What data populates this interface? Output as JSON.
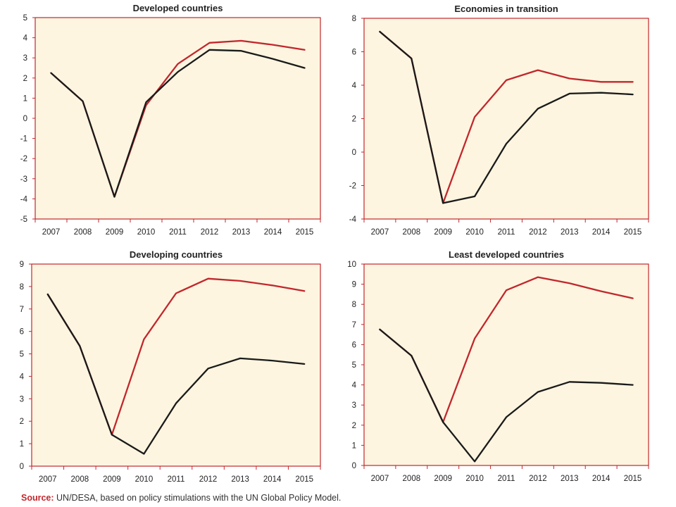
{
  "colors": {
    "plot_background": "#fdf5e0",
    "frame": "#c2272d",
    "series_a": "#c2272d",
    "series_b": "#1a1a1a",
    "source_label": "#c2272d"
  },
  "source": {
    "label": "Source:",
    "text": "UN/DESA, based on policy stimulations with the UN Global Policy Model."
  },
  "chart_data": [
    {
      "type": "line",
      "title": "Developed countries",
      "xlabel": "",
      "ylabel": "",
      "x": [
        "2007",
        "2008",
        "2009",
        "2010",
        "2011",
        "2012",
        "2013",
        "2014",
        "2015"
      ],
      "ylim": [
        -5,
        5
      ],
      "yticks": [
        "5",
        "4",
        "3",
        "2",
        "1",
        "0",
        "-1",
        "-2",
        "-3",
        "-4",
        "-5"
      ],
      "grid": false,
      "series": [
        {
          "values": [
            2.25,
            0.85,
            -3.9,
            0.65,
            2.7,
            3.75,
            3.85,
            3.65,
            3.4
          ]
        },
        {
          "values": [
            2.25,
            0.85,
            -3.9,
            0.8,
            2.3,
            3.4,
            3.35,
            2.95,
            2.5
          ]
        }
      ]
    },
    {
      "type": "line",
      "title": "Economies in transition",
      "xlabel": "",
      "ylabel": "",
      "x": [
        "2007",
        "2008",
        "2009",
        "2010",
        "2011",
        "2012",
        "2013",
        "2014",
        "2015"
      ],
      "ylim": [
        -4,
        8
      ],
      "yticks": [
        "8",
        "6",
        "4",
        "2",
        "0",
        "-2",
        "-4"
      ],
      "grid": false,
      "series": [
        {
          "values": [
            7.2,
            5.6,
            -3.05,
            2.1,
            4.3,
            4.9,
            4.4,
            4.2,
            4.2
          ]
        },
        {
          "values": [
            7.2,
            5.6,
            -3.05,
            -2.65,
            0.5,
            2.6,
            3.5,
            3.55,
            3.45
          ]
        }
      ]
    },
    {
      "type": "line",
      "title": "Developing countries",
      "xlabel": "",
      "ylabel": "",
      "x": [
        "2007",
        "2008",
        "2009",
        "2010",
        "2011",
        "2012",
        "2013",
        "2014",
        "2015"
      ],
      "ylim": [
        0,
        9
      ],
      "yticks": [
        "9",
        "8",
        "7",
        "6",
        "5",
        "4",
        "3",
        "2",
        "1",
        "0"
      ],
      "grid": false,
      "series": [
        {
          "values": [
            7.65,
            5.35,
            1.4,
            5.65,
            7.7,
            8.35,
            8.25,
            8.05,
            7.8
          ]
        },
        {
          "values": [
            7.65,
            5.35,
            1.4,
            0.55,
            2.8,
            4.35,
            4.8,
            4.7,
            4.55
          ]
        }
      ]
    },
    {
      "type": "line",
      "title": "Least developed countries",
      "xlabel": "",
      "ylabel": "",
      "x": [
        "2007",
        "2008",
        "2009",
        "2010",
        "2011",
        "2012",
        "2013",
        "2014",
        "2015"
      ],
      "ylim": [
        0,
        10
      ],
      "yticks": [
        "10",
        "9",
        "8",
        "7",
        "6",
        "5",
        "4",
        "3",
        "2",
        "1",
        "0"
      ],
      "grid": false,
      "series": [
        {
          "values": [
            6.75,
            5.45,
            2.15,
            6.3,
            8.7,
            9.35,
            9.05,
            8.65,
            8.3
          ]
        },
        {
          "values": [
            6.75,
            5.45,
            2.15,
            0.2,
            2.4,
            3.65,
            4.15,
            4.1,
            4.0
          ]
        }
      ]
    }
  ]
}
